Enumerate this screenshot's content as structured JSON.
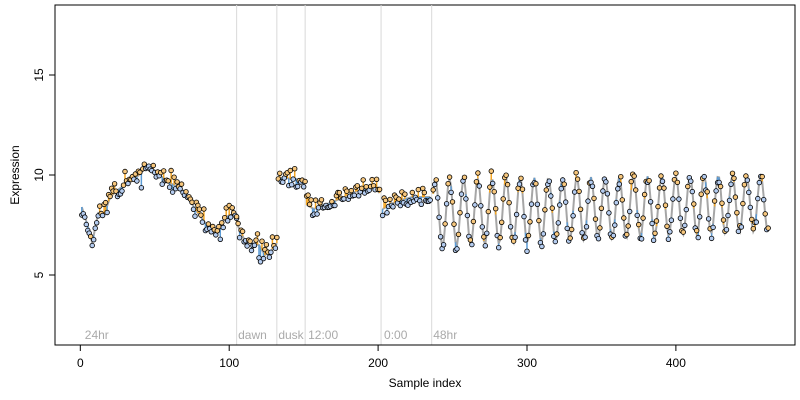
{
  "chart_data": {
    "type": "scatter",
    "title": "",
    "xlabel": "Sample index",
    "ylabel": "Expression",
    "xlim": [
      -17,
      480
    ],
    "ylim": [
      1.5,
      18.5
    ],
    "x_ticks": [
      0,
      100,
      200,
      300,
      400
    ],
    "y_ticks": [
      5,
      10,
      15
    ],
    "grid": false,
    "legend": "none",
    "phase_markers": [
      {
        "label": "24hr",
        "label_x": 3,
        "line_x": null
      },
      {
        "label": "dawn",
        "label_x": 106,
        "line_x": 105
      },
      {
        "label": "dusk",
        "label_x": 133,
        "line_x": 132
      },
      {
        "label": "12:00",
        "label_x": 153,
        "line_x": 151
      },
      {
        "label": "0:00",
        "label_x": 204,
        "line_x": 202
      },
      {
        "label": "48hr",
        "label_x": 237,
        "line_x": 236
      }
    ],
    "colors": {
      "fitted_line": "#a6a6a6",
      "residual_negative": "#5b9bd5",
      "residual_positive": "#f5a623",
      "point_fill_low": "#b4ccf0",
      "point_fill_high": "#f7c77d",
      "point_stroke": "#000000",
      "phase_line": "#d9d9d9",
      "phase_label": "#aaaaaa"
    },
    "series": [
      {
        "segment": "24hr",
        "x_start": 1,
        "x_end": 105,
        "y_points": [
          [
            1,
            8.4
          ],
          [
            6,
            7.2
          ],
          [
            8,
            6.6
          ],
          [
            12,
            8.1
          ],
          [
            16,
            8.0
          ],
          [
            20,
            8.9
          ],
          [
            26,
            9.3
          ],
          [
            32,
            9.6
          ],
          [
            38,
            9.9
          ],
          [
            43,
            10.3
          ],
          [
            46,
            10.5
          ],
          [
            50,
            10.2
          ],
          [
            55,
            9.9
          ],
          [
            60,
            9.6
          ],
          [
            66,
            9.4
          ],
          [
            72,
            8.9
          ],
          [
            78,
            8.2
          ],
          [
            84,
            7.6
          ],
          [
            88,
            7.4
          ],
          [
            92,
            7.1
          ],
          [
            96,
            7.7
          ],
          [
            100,
            8.0
          ],
          [
            104,
            8.0
          ]
        ]
      },
      {
        "segment": "dawn",
        "x_start": 105,
        "x_end": 132,
        "y_points": [
          [
            105,
            7.6
          ],
          [
            110,
            6.8
          ],
          [
            115,
            6.6
          ],
          [
            120,
            6.5
          ],
          [
            124,
            6.0
          ],
          [
            128,
            6.2
          ],
          [
            132,
            6.6
          ]
        ]
      },
      {
        "segment": "dusk",
        "x_start": 133,
        "x_end": 151,
        "y_points": [
          [
            133,
            9.8
          ],
          [
            137,
            9.9
          ],
          [
            141,
            9.8
          ],
          [
            145,
            9.8
          ],
          [
            150,
            9.6
          ]
        ]
      },
      {
        "segment": "12:00",
        "x_start": 152,
        "x_end": 201,
        "y_points": [
          [
            152,
            8.5
          ],
          [
            157,
            8.3
          ],
          [
            162,
            8.5
          ],
          [
            168,
            8.6
          ],
          [
            174,
            8.8
          ],
          [
            180,
            9.0
          ],
          [
            186,
            9.2
          ],
          [
            192,
            9.3
          ],
          [
            198,
            9.4
          ],
          [
            201,
            9.1
          ]
        ]
      },
      {
        "segment": "0:00",
        "x_start": 203,
        "x_end": 235,
        "y_points": [
          [
            203,
            8.3
          ],
          [
            208,
            8.5
          ],
          [
            213,
            8.7
          ],
          [
            218,
            8.8
          ],
          [
            223,
            8.9
          ],
          [
            228,
            8.9
          ],
          [
            233,
            8.9
          ]
        ]
      },
      {
        "segment": "48hr",
        "x_start": 237,
        "x_end": 462,
        "oscillation": {
          "period": 9.5,
          "center_start": 8.1,
          "center_end": 8.6,
          "amplitude_start": 1.7,
          "amplitude_end": 1.4,
          "min_observed": 5.6,
          "max_observed": 10.6
        }
      }
    ]
  }
}
